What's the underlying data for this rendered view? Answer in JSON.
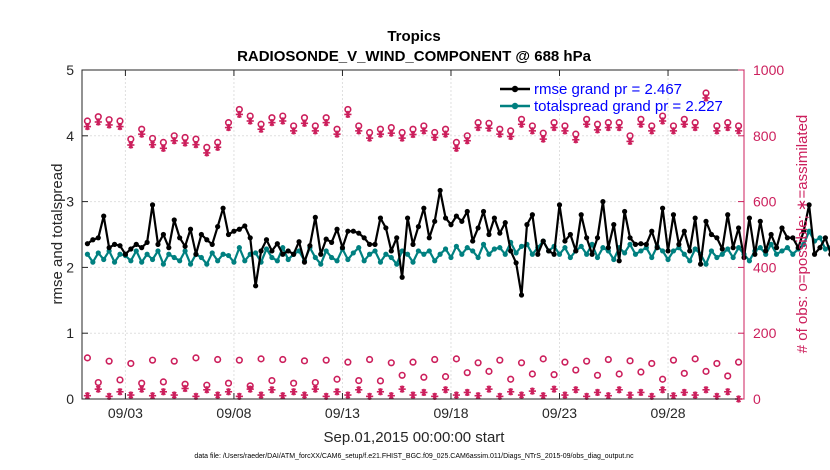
{
  "chart_data": {
    "type": "line",
    "title": "Tropics",
    "subtitle": "RADIOSONDE_V_WIND_COMPONENT @ 688 hPa",
    "xlabel": "Sep.01,2015 00:00:00 start",
    "ylabel": "rmse and totalspread",
    "ylabel_right": "# of obs: o=possible; ∗=assimilated",
    "footer": "data file: /Users/raeder/DAI/ATM_forcXX/CAM6_setup/f.e21.FHIST_BGC.f09_025.CAM6assim.011/Diags_NTrS_2015-09/obs_diag_output.nc",
    "xlim": [
      1,
      31.5
    ],
    "ylim": [
      0,
      5
    ],
    "ylim_right": [
      0,
      1000
    ],
    "xticks": [
      3,
      8,
      13,
      18,
      23,
      28
    ],
    "xtick_labels": [
      "09/03",
      "09/08",
      "09/13",
      "09/18",
      "09/23",
      "09/28"
    ],
    "yticks": [
      "0",
      "1",
      "2",
      "3",
      "4",
      "5"
    ],
    "yticks_right": [
      "0",
      "200",
      "400",
      "600",
      "800",
      "1000"
    ],
    "x_start": 1.25,
    "x_step": 0.25,
    "series": [
      {
        "name": "rmse",
        "legend": "rmse grand pr = 2.467",
        "color": "#000000",
        "axis": "left",
        "values": [
          2.36,
          2.42,
          2.45,
          2.78,
          2.3,
          2.35,
          2.33,
          2.2,
          2.28,
          2.35,
          2.3,
          2.38,
          2.95,
          2.35,
          2.5,
          2.3,
          2.72,
          2.45,
          2.32,
          2.58,
          2.2,
          2.5,
          2.42,
          2.35,
          2.62,
          2.9,
          2.5,
          2.55,
          2.58,
          2.63,
          2.45,
          1.72,
          2.25,
          2.42,
          2.25,
          2.36,
          2.2,
          2.25,
          2.2,
          2.39,
          2.08,
          2.33,
          2.76,
          2.2,
          2.43,
          2.38,
          2.58,
          2.3,
          2.55,
          2.55,
          2.52,
          2.45,
          2.35,
          2.35,
          2.75,
          2.6,
          2.25,
          2.45,
          1.85,
          2.75,
          2.35,
          2.62,
          2.9,
          2.45,
          2.7,
          3.17,
          2.75,
          2.65,
          2.78,
          2.7,
          2.85,
          2.4,
          2.6,
          2.85,
          2.5,
          2.75,
          2.52,
          2.68,
          2.25,
          2.07,
          1.58,
          2.65,
          2.8,
          2.2,
          2.4,
          2.25,
          2.2,
          2.95,
          2.4,
          2.5,
          2.25,
          2.8,
          2.45,
          2.2,
          2.45,
          3.0,
          2.3,
          2.65,
          2.1,
          2.85,
          2.45,
          2.35,
          2.36,
          2.35,
          2.55,
          2.3,
          2.9,
          2.25,
          2.8,
          2.35,
          2.55,
          2.25,
          2.75,
          2.05,
          2.7,
          2.5,
          2.45,
          2.28,
          2.8,
          2.3,
          2.6,
          2.15,
          2.75,
          2.2,
          2.7,
          2.25,
          2.5,
          2.3,
          2.6,
          2.45,
          2.45,
          2.3,
          2.55,
          2.95,
          2.2,
          2.3,
          2.45,
          2.2,
          2.4,
          2.38,
          2.48,
          2.4,
          2.38,
          3.1
        ]
      },
      {
        "name": "totalspread",
        "legend": "totalspread grand pr = 2.227",
        "color": "#008080",
        "axis": "left",
        "values": [
          2.2,
          2.08,
          2.22,
          2.12,
          2.25,
          2.08,
          2.2,
          2.18,
          2.1,
          2.25,
          2.08,
          2.2,
          2.12,
          2.25,
          2.05,
          2.2,
          2.15,
          2.1,
          2.25,
          2.05,
          2.2,
          2.15,
          2.05,
          2.22,
          2.1,
          2.2,
          2.18,
          2.08,
          2.3,
          2.1,
          2.2,
          2.22,
          2.08,
          2.28,
          2.15,
          2.1,
          2.3,
          2.12,
          2.2,
          2.25,
          2.1,
          2.3,
          2.15,
          2.05,
          2.25,
          2.15,
          2.1,
          2.28,
          2.12,
          2.22,
          2.3,
          2.1,
          2.2,
          2.25,
          2.08,
          2.2,
          2.15,
          2.05,
          2.25,
          2.2,
          2.08,
          2.25,
          2.2,
          2.25,
          2.1,
          2.2,
          2.28,
          2.15,
          2.32,
          2.2,
          2.3,
          2.25,
          2.15,
          2.35,
          2.2,
          2.28,
          2.3,
          2.2,
          2.38,
          2.22,
          2.32,
          2.35,
          2.2,
          2.3,
          2.4,
          2.25,
          2.32,
          2.2,
          2.3,
          2.15,
          2.25,
          2.32,
          2.2,
          2.35,
          2.15,
          2.3,
          2.25,
          2.12,
          2.3,
          2.22,
          2.35,
          2.2,
          2.25,
          2.3,
          2.15,
          2.32,
          2.25,
          2.12,
          2.25,
          2.3,
          2.2,
          2.1,
          2.28,
          2.2,
          2.05,
          2.25,
          2.15,
          2.2,
          2.28,
          2.15,
          2.3,
          2.2,
          2.1,
          2.25,
          2.3,
          2.2,
          2.35,
          2.2,
          2.25,
          2.3,
          2.2,
          2.28,
          2.35,
          2.55,
          2.4,
          2.45,
          2.28,
          2.3,
          2.2,
          2.4,
          2.25,
          2.15,
          2.3,
          2.0
        ]
      },
      {
        "name": "obs possible (top)",
        "marker": "o",
        "color": "#cc1f5c",
        "axis": "right",
        "x_start": 1.25,
        "x_step": 0.5,
        "values": [
          845,
          858,
          849,
          845,
          790,
          820,
          792,
          780,
          800,
          795,
          790,
          765,
          780,
          840,
          880,
          860,
          835,
          855,
          860,
          830,
          855,
          830,
          855,
          820,
          880,
          830,
          810,
          820,
          825,
          810,
          820,
          830,
          810,
          820,
          780,
          800,
          840,
          838,
          820,
          815,
          850,
          830,
          808,
          840,
          830,
          805,
          850,
          835,
          840,
          840,
          800,
          850,
          830,
          860,
          830,
          850,
          840,
          930,
          830,
          840,
          830
        ]
      },
      {
        "name": "obs assimilated (top)",
        "marker": "*",
        "color": "#cc1f5c",
        "axis": "right",
        "x_start": 1.25,
        "x_step": 0.5,
        "values": [
          828,
          842,
          833,
          828,
          772,
          805,
          773,
          762,
          785,
          778,
          773,
          748,
          765,
          825,
          865,
          845,
          820,
          840,
          845,
          815,
          838,
          815,
          840,
          805,
          865,
          815,
          793,
          805,
          808,
          793,
          804,
          815,
          795,
          805,
          762,
          785,
          825,
          823,
          805,
          798,
          835,
          815,
          790,
          825,
          815,
          788,
          835,
          818,
          825,
          825,
          783,
          835,
          815,
          845,
          815,
          835,
          825,
          915,
          815,
          825,
          815
        ]
      },
      {
        "name": "obs possible (bottom)",
        "marker": "o",
        "color": "#cc1f5c",
        "axis": "right",
        "x_start": 1.25,
        "x_step": 0.5,
        "values": [
          125,
          50,
          115,
          58,
          108,
          48,
          118,
          52,
          115,
          45,
          125,
          42,
          120,
          48,
          118,
          40,
          122,
          56,
          120,
          48,
          116,
          50,
          118,
          60,
          112,
          56,
          120,
          55,
          110,
          72,
          112,
          66,
          120,
          68,
          122,
          80,
          110,
          84,
          118,
          60,
          110,
          76,
          122,
          74,
          112,
          88,
          115,
          72,
          120,
          76,
          116,
          82,
          108,
          60,
          118,
          78,
          122,
          84,
          108,
          70,
          112
        ]
      },
      {
        "name": "obs assimilated (bottom)",
        "marker": "*",
        "color": "#cc1f5c",
        "axis": "right",
        "x_start": 1.25,
        "x_step": 0.5,
        "values": [
          10,
          30,
          8,
          22,
          12,
          30,
          10,
          22,
          12,
          32,
          8,
          28,
          12,
          22,
          8,
          30,
          12,
          28,
          10,
          22,
          12,
          30,
          8,
          22,
          12,
          28,
          8,
          22,
          10,
          30,
          12,
          20,
          8,
          28,
          12,
          20,
          10,
          30,
          8,
          22,
          12,
          24,
          10,
          30,
          12,
          28,
          8,
          20,
          10,
          28,
          12,
          20,
          8,
          28,
          10,
          20,
          12,
          28,
          8,
          22,
          0
        ]
      }
    ]
  }
}
